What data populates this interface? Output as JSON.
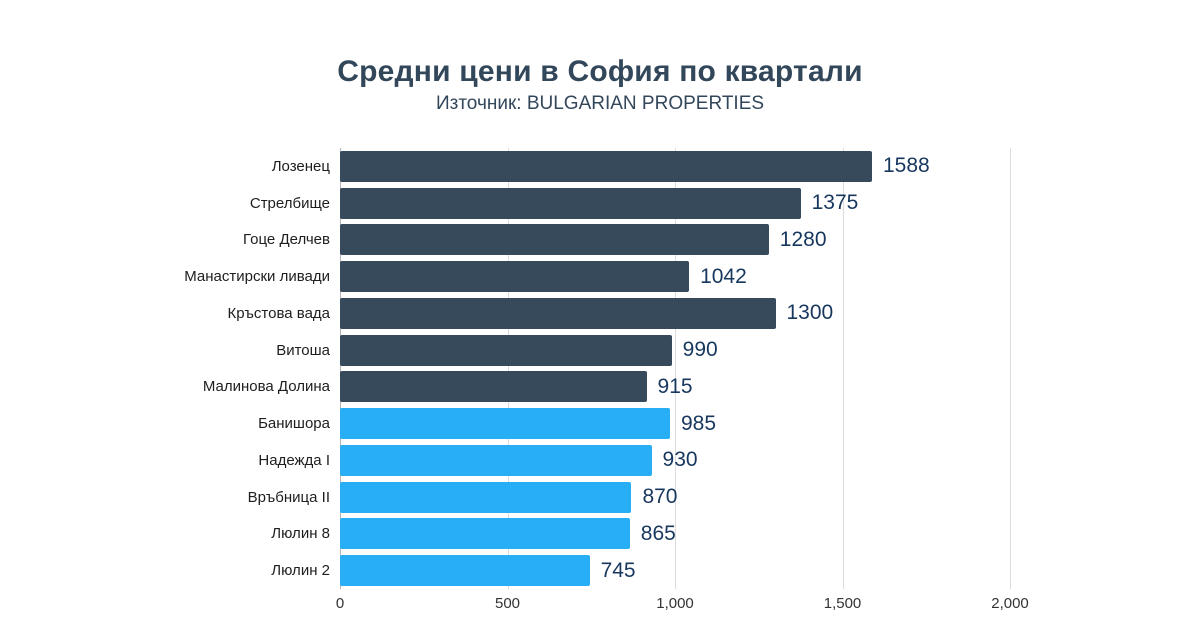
{
  "header": {
    "title": "Средни цени в София по квартали",
    "subtitle": "Източник: BULGARIAN PROPERTIES"
  },
  "chart_data": {
    "type": "bar",
    "orientation": "horizontal",
    "title": "Средни цени в София по квартали",
    "subtitle": "Източник: BULGARIAN PROPERTIES",
    "xlim": [
      0,
      2000
    ],
    "grid": true,
    "legend": "none",
    "x_ticks": [
      {
        "value": 0,
        "label": "0"
      },
      {
        "value": 500,
        "label": "500"
      },
      {
        "value": 1000,
        "label": "1,000"
      },
      {
        "value": 1500,
        "label": "1,500"
      },
      {
        "value": 2000,
        "label": "2,000"
      }
    ],
    "bars": [
      {
        "label": "Лозенец",
        "value": 1588,
        "value_label": "1588",
        "color": "dark"
      },
      {
        "label": "Стрелбище",
        "value": 1375,
        "value_label": "1375",
        "color": "dark"
      },
      {
        "label": "Гоце Делчев",
        "value": 1280,
        "value_label": "1280",
        "color": "dark"
      },
      {
        "label": "Манастирски ливади",
        "value": 1042,
        "value_label": "1042",
        "color": "dark"
      },
      {
        "label": "Кръстова вада",
        "value": 1300,
        "value_label": "1300",
        "color": "dark"
      },
      {
        "label": "Витоша",
        "value": 990,
        "value_label": "990",
        "color": "dark"
      },
      {
        "label": "Малинова Долина",
        "value": 915,
        "value_label": "915",
        "color": "dark"
      },
      {
        "label": "Банишора",
        "value": 985,
        "value_label": "985",
        "color": "light"
      },
      {
        "label": "Надежда I",
        "value": 930,
        "value_label": "930",
        "color": "light"
      },
      {
        "label": "Връбница II",
        "value": 870,
        "value_label": "870",
        "color": "light"
      },
      {
        "label": "Люлин 8",
        "value": 865,
        "value_label": "865",
        "color": "light"
      },
      {
        "label": "Люлин 2",
        "value": 745,
        "value_label": "745",
        "color": "light"
      }
    ],
    "colors": {
      "dark": "#374a5c",
      "light": "#27aef5",
      "title_text": "#33475b",
      "value_text": "#17375e",
      "gridline": "#dcdcdc",
      "zero_axis": "#b5b5b5"
    }
  }
}
